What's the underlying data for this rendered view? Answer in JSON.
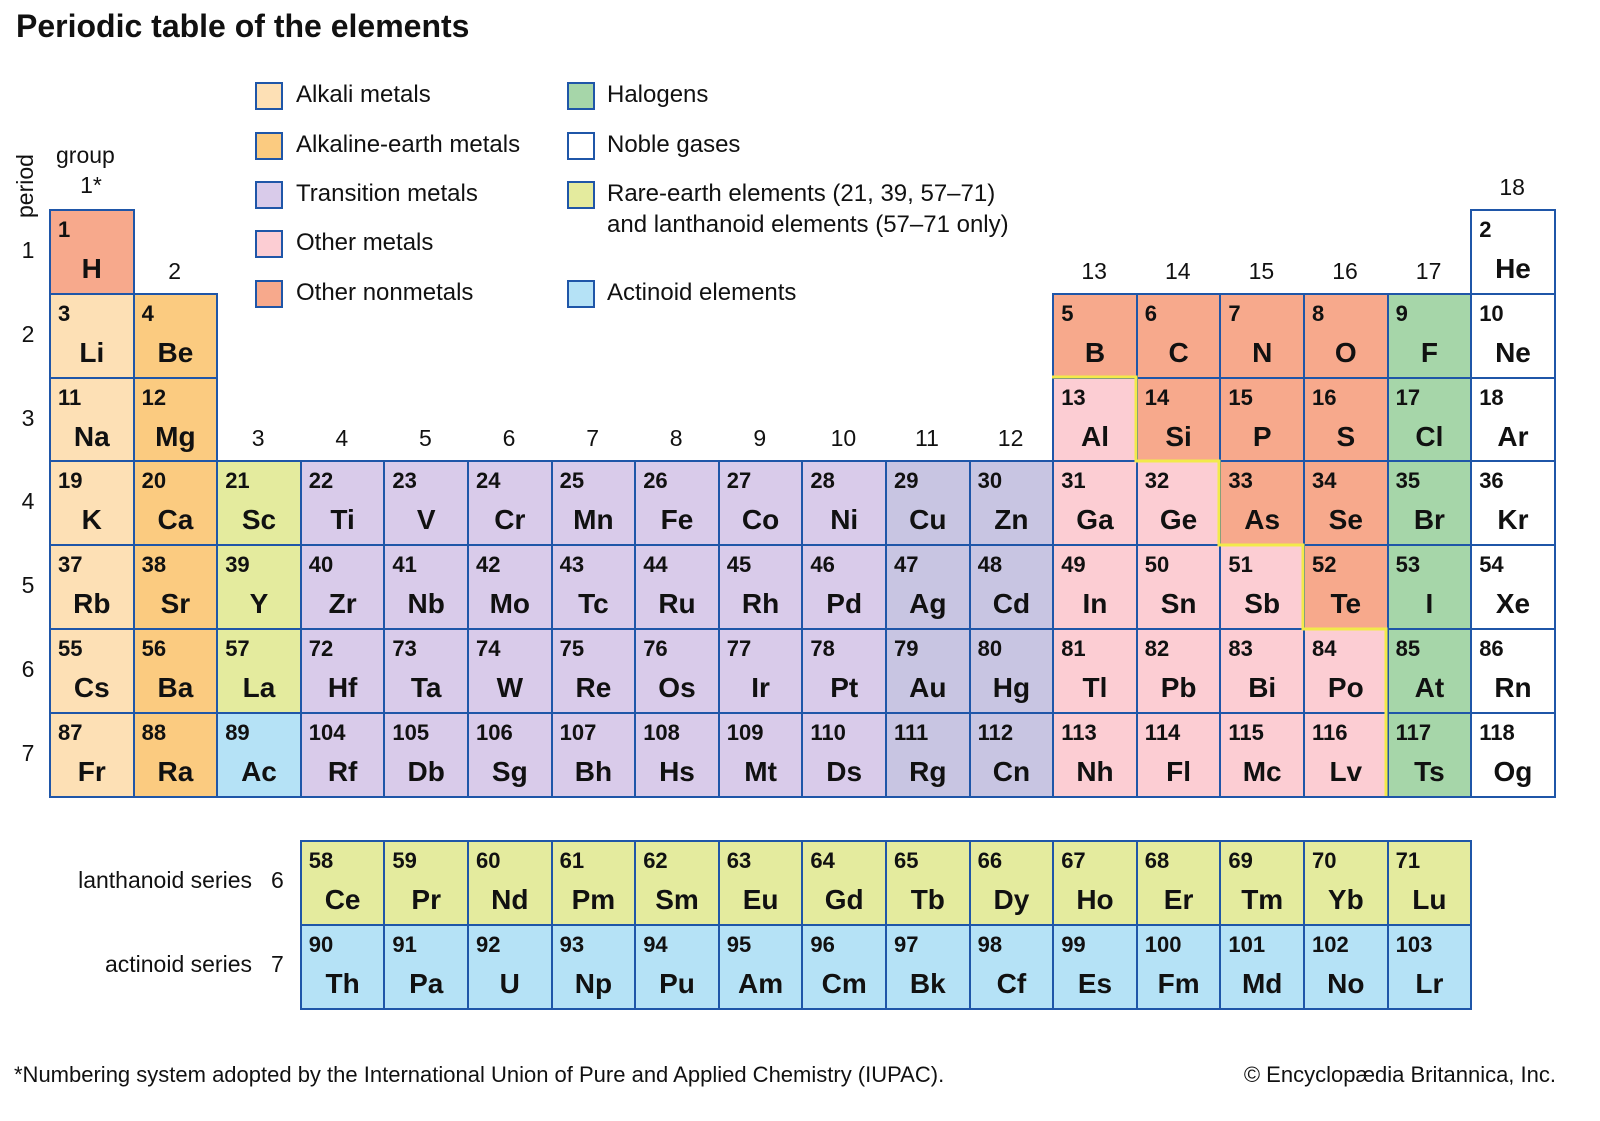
{
  "title": "Periodic table of the elements",
  "axis": {
    "period_label": "period",
    "group_label": "group"
  },
  "groups": [
    "1*",
    "2",
    "3",
    "4",
    "5",
    "6",
    "7",
    "8",
    "9",
    "10",
    "11",
    "12",
    "13",
    "14",
    "15",
    "16",
    "17",
    "18"
  ],
  "periods": [
    "1",
    "2",
    "3",
    "4",
    "5",
    "6",
    "7"
  ],
  "colors": {
    "border": "#1f56a8",
    "metalloid_line": "#f2ea4a",
    "alkali": "#fde0b5",
    "alkaline": "#fbcb80",
    "transition": "#d9cbea",
    "transition_11_12": "#c8c5e2",
    "other_metal": "#fccdd3",
    "nonmetal": "#f7a98c",
    "halogen": "#a6d6a9",
    "noble": "#ffffff",
    "rare_earth": "#e4eb9e",
    "actinoid": "#b5e2f6"
  },
  "legend": [
    {
      "cat": "alkali",
      "label": "Alkali metals"
    },
    {
      "cat": "alkaline",
      "label": "Alkaline-earth metals"
    },
    {
      "cat": "transition",
      "label": "Transition metals"
    },
    {
      "cat": "other_metal",
      "label": "Other metals"
    },
    {
      "cat": "nonmetal",
      "label": "Other nonmetals"
    },
    {
      "cat": "halogen",
      "label": "Halogens"
    },
    {
      "cat": "noble",
      "label": "Noble gases"
    },
    {
      "cat": "rare_earth",
      "label": "Rare-earth elements (21, 39, 57–71)",
      "label2": "and lanthanoid elements (57–71 only)"
    },
    {
      "cat": "actinoid",
      "label": "Actinoid elements"
    }
  ],
  "series": [
    {
      "label": "lanthanoid series",
      "period": "6"
    },
    {
      "label": "actinoid series",
      "period": "7"
    }
  ],
  "elements": [
    [
      1,
      "H",
      "nonmetal",
      1,
      1
    ],
    [
      2,
      "He",
      "noble",
      1,
      18
    ],
    [
      3,
      "Li",
      "alkali",
      2,
      1
    ],
    [
      4,
      "Be",
      "alkaline",
      2,
      2
    ],
    [
      5,
      "B",
      "nonmetal",
      2,
      13
    ],
    [
      6,
      "C",
      "nonmetal",
      2,
      14
    ],
    [
      7,
      "N",
      "nonmetal",
      2,
      15
    ],
    [
      8,
      "O",
      "nonmetal",
      2,
      16
    ],
    [
      9,
      "F",
      "halogen",
      2,
      17
    ],
    [
      10,
      "Ne",
      "noble",
      2,
      18
    ],
    [
      11,
      "Na",
      "alkali",
      3,
      1
    ],
    [
      12,
      "Mg",
      "alkaline",
      3,
      2
    ],
    [
      13,
      "Al",
      "other_metal",
      3,
      13
    ],
    [
      14,
      "Si",
      "nonmetal",
      3,
      14
    ],
    [
      15,
      "P",
      "nonmetal",
      3,
      15
    ],
    [
      16,
      "S",
      "nonmetal",
      3,
      16
    ],
    [
      17,
      "Cl",
      "halogen",
      3,
      17
    ],
    [
      18,
      "Ar",
      "noble",
      3,
      18
    ],
    [
      19,
      "K",
      "alkali",
      4,
      1
    ],
    [
      20,
      "Ca",
      "alkaline",
      4,
      2
    ],
    [
      21,
      "Sc",
      "rare_earth",
      4,
      3
    ],
    [
      22,
      "Ti",
      "transition",
      4,
      4
    ],
    [
      23,
      "V",
      "transition",
      4,
      5
    ],
    [
      24,
      "Cr",
      "transition",
      4,
      6
    ],
    [
      25,
      "Mn",
      "transition",
      4,
      7
    ],
    [
      26,
      "Fe",
      "transition",
      4,
      8
    ],
    [
      27,
      "Co",
      "transition",
      4,
      9
    ],
    [
      28,
      "Ni",
      "transition",
      4,
      10
    ],
    [
      29,
      "Cu",
      "transition",
      4,
      11
    ],
    [
      30,
      "Zn",
      "transition",
      4,
      12
    ],
    [
      31,
      "Ga",
      "other_metal",
      4,
      13
    ],
    [
      32,
      "Ge",
      "other_metal",
      4,
      14
    ],
    [
      33,
      "As",
      "nonmetal",
      4,
      15
    ],
    [
      34,
      "Se",
      "nonmetal",
      4,
      16
    ],
    [
      35,
      "Br",
      "halogen",
      4,
      17
    ],
    [
      36,
      "Kr",
      "noble",
      4,
      18
    ],
    [
      37,
      "Rb",
      "alkali",
      5,
      1
    ],
    [
      38,
      "Sr",
      "alkaline",
      5,
      2
    ],
    [
      39,
      "Y",
      "rare_earth",
      5,
      3
    ],
    [
      40,
      "Zr",
      "transition",
      5,
      4
    ],
    [
      41,
      "Nb",
      "transition",
      5,
      5
    ],
    [
      42,
      "Mo",
      "transition",
      5,
      6
    ],
    [
      43,
      "Tc",
      "transition",
      5,
      7
    ],
    [
      44,
      "Ru",
      "transition",
      5,
      8
    ],
    [
      45,
      "Rh",
      "transition",
      5,
      9
    ],
    [
      46,
      "Pd",
      "transition",
      5,
      10
    ],
    [
      47,
      "Ag",
      "transition",
      5,
      11
    ],
    [
      48,
      "Cd",
      "transition",
      5,
      12
    ],
    [
      49,
      "In",
      "other_metal",
      5,
      13
    ],
    [
      50,
      "Sn",
      "other_metal",
      5,
      14
    ],
    [
      51,
      "Sb",
      "other_metal",
      5,
      15
    ],
    [
      52,
      "Te",
      "nonmetal",
      5,
      16
    ],
    [
      53,
      "I",
      "halogen",
      5,
      17
    ],
    [
      54,
      "Xe",
      "noble",
      5,
      18
    ],
    [
      55,
      "Cs",
      "alkali",
      6,
      1
    ],
    [
      56,
      "Ba",
      "alkaline",
      6,
      2
    ],
    [
      57,
      "La",
      "rare_earth",
      6,
      3
    ],
    [
      72,
      "Hf",
      "transition",
      6,
      4
    ],
    [
      73,
      "Ta",
      "transition",
      6,
      5
    ],
    [
      74,
      "W",
      "transition",
      6,
      6
    ],
    [
      75,
      "Re",
      "transition",
      6,
      7
    ],
    [
      76,
      "Os",
      "transition",
      6,
      8
    ],
    [
      77,
      "Ir",
      "transition",
      6,
      9
    ],
    [
      78,
      "Pt",
      "transition",
      6,
      10
    ],
    [
      79,
      "Au",
      "transition",
      6,
      11
    ],
    [
      80,
      "Hg",
      "transition",
      6,
      12
    ],
    [
      81,
      "Tl",
      "other_metal",
      6,
      13
    ],
    [
      82,
      "Pb",
      "other_metal",
      6,
      14
    ],
    [
      83,
      "Bi",
      "other_metal",
      6,
      15
    ],
    [
      84,
      "Po",
      "other_metal",
      6,
      16
    ],
    [
      85,
      "At",
      "halogen",
      6,
      17
    ],
    [
      86,
      "Rn",
      "noble",
      6,
      18
    ],
    [
      87,
      "Fr",
      "alkali",
      7,
      1
    ],
    [
      88,
      "Ra",
      "alkaline",
      7,
      2
    ],
    [
      89,
      "Ac",
      "actinoid",
      7,
      3
    ],
    [
      104,
      "Rf",
      "transition",
      7,
      4
    ],
    [
      105,
      "Db",
      "transition",
      7,
      5
    ],
    [
      106,
      "Sg",
      "transition",
      7,
      6
    ],
    [
      107,
      "Bh",
      "transition",
      7,
      7
    ],
    [
      108,
      "Hs",
      "transition",
      7,
      8
    ],
    [
      109,
      "Mt",
      "transition",
      7,
      9
    ],
    [
      110,
      "Ds",
      "transition",
      7,
      10
    ],
    [
      111,
      "Rg",
      "transition",
      7,
      11
    ],
    [
      112,
      "Cn",
      "transition",
      7,
      12
    ],
    [
      113,
      "Nh",
      "other_metal",
      7,
      13
    ],
    [
      114,
      "Fl",
      "other_metal",
      7,
      14
    ],
    [
      115,
      "Mc",
      "other_metal",
      7,
      15
    ],
    [
      116,
      "Lv",
      "other_metal",
      7,
      16
    ],
    [
      117,
      "Ts",
      "halogen",
      7,
      17
    ],
    [
      118,
      "Og",
      "noble",
      7,
      18
    ]
  ],
  "lanthanoids": [
    [
      58,
      "Ce"
    ],
    [
      59,
      "Pr"
    ],
    [
      60,
      "Nd"
    ],
    [
      61,
      "Pm"
    ],
    [
      62,
      "Sm"
    ],
    [
      63,
      "Eu"
    ],
    [
      64,
      "Gd"
    ],
    [
      65,
      "Tb"
    ],
    [
      66,
      "Dy"
    ],
    [
      67,
      "Ho"
    ],
    [
      68,
      "Er"
    ],
    [
      69,
      "Tm"
    ],
    [
      70,
      "Yb"
    ],
    [
      71,
      "Lu"
    ]
  ],
  "actinoids": [
    [
      90,
      "Th"
    ],
    [
      91,
      "Pa"
    ],
    [
      92,
      "U"
    ],
    [
      93,
      "Np"
    ],
    [
      94,
      "Pu"
    ],
    [
      95,
      "Am"
    ],
    [
      96,
      "Cm"
    ],
    [
      97,
      "Bk"
    ],
    [
      98,
      "Cf"
    ],
    [
      99,
      "Es"
    ],
    [
      100,
      "Fm"
    ],
    [
      101,
      "Md"
    ],
    [
      102,
      "No"
    ],
    [
      103,
      "Lr"
    ]
  ],
  "footer": {
    "note": "*Numbering system adopted by the International Union of Pure and Applied Chemistry (IUPAC).",
    "copyright": "© Encyclopædia Britannica, Inc."
  }
}
